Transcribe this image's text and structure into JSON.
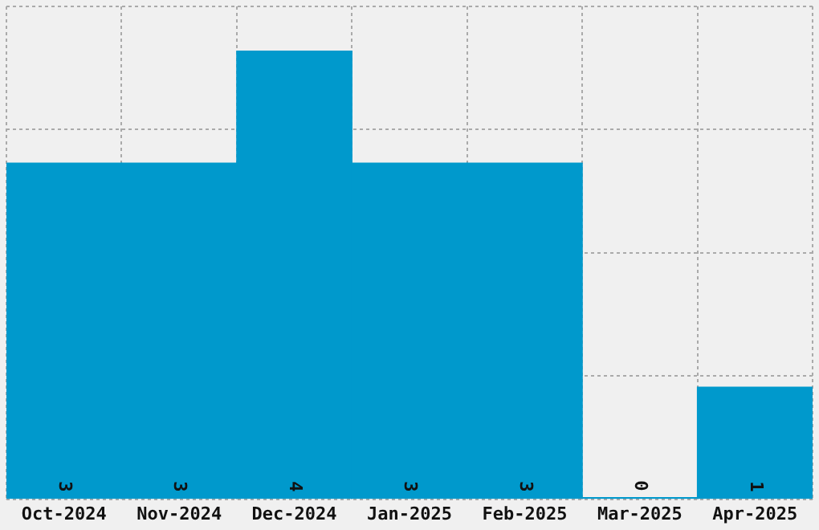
{
  "chart_data": {
    "type": "bar",
    "categories": [
      "Oct-2024",
      "Nov-2024",
      "Dec-2024",
      "Jan-2025",
      "Feb-2025",
      "Mar-2025",
      "Apr-2025"
    ],
    "values": [
      3,
      3,
      4,
      3,
      3,
      0,
      1
    ],
    "color": "#0099cc",
    "ylim": [
      0,
      4.4
    ],
    "yticks": [
      {
        "value": 0,
        "label": null
      },
      {
        "value": 1.1,
        "label": null
      },
      {
        "value": 2.2,
        "label": null
      },
      {
        "value": 3.3,
        "label": null
      },
      {
        "value": 4.4,
        "label": null
      }
    ],
    "tick_labels": "x",
    "grid": true,
    "data_labels": true
  }
}
